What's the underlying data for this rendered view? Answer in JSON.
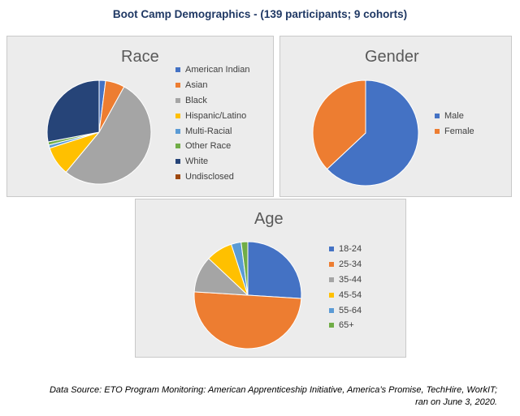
{
  "title": "Boot Camp Demographics - (139 participants; 9 cohorts)",
  "chart_data": [
    {
      "type": "pie",
      "title": "Race",
      "categories": [
        "American Indian",
        "Asian",
        "Black",
        "Hispanic/Latino",
        "Multi-Racial",
        "Other Race",
        "White",
        "Undisclosed"
      ],
      "values": [
        2,
        6,
        53,
        9,
        1,
        1,
        28,
        0
      ],
      "colors": [
        "#4472c4",
        "#ed7d31",
        "#a5a5a5",
        "#ffc000",
        "#5b9bd5",
        "#70ad47",
        "#264478",
        "#9e480e"
      ],
      "legend_position": "right"
    },
    {
      "type": "pie",
      "title": "Gender",
      "categories": [
        "Male",
        "Female"
      ],
      "values": [
        63,
        37
      ],
      "colors": [
        "#4472c4",
        "#ed7d31"
      ],
      "legend_position": "right"
    },
    {
      "type": "pie",
      "title": "Age",
      "categories": [
        "18-24",
        "25-34",
        "35-44",
        "45-54",
        "55-64",
        "65+"
      ],
      "values": [
        26,
        50,
        11,
        8,
        3,
        2
      ],
      "colors": [
        "#4472c4",
        "#ed7d31",
        "#a5a5a5",
        "#ffc000",
        "#5b9bd5",
        "#70ad47"
      ],
      "legend_position": "right"
    }
  ],
  "source": {
    "line1": "Data Source: ETO Program Monitoring: American Apprenticeship Initiative, America’s Promise, TechHire, WorkIT;",
    "line2": "ran on June 3, 2020."
  }
}
